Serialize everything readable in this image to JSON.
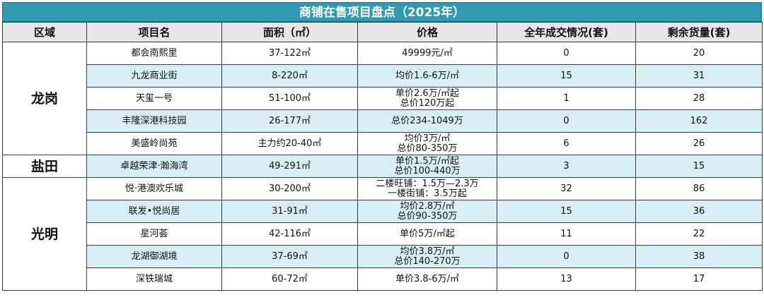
{
  "title": "商铺在售项目盘点（2025年）",
  "headers": [
    "区域",
    "项目名",
    "面积（㎡）",
    "价格",
    "全年成交情况(套)",
    "剩余货量(套)"
  ],
  "groups": [
    {
      "region": "龙岗",
      "rows": [
        {
          "name": "都会南熙里",
          "area": "37-122㎡",
          "price": [
            "49999元/㎡"
          ],
          "sold": "0",
          "left": "20"
        },
        {
          "name": "九龙商业街",
          "area": "8-220㎡",
          "price": [
            "均价1.6-6万/㎡"
          ],
          "sold": "15",
          "left": "31"
        },
        {
          "name": "天玺一号",
          "area": "51-100㎡",
          "price": [
            "单价2.6万/㎡起",
            "总价120万起"
          ],
          "sold": "1",
          "left": "28"
        },
        {
          "name": "丰隆深港科技园",
          "area": "26-177㎡",
          "price": [
            "总价234-1049万"
          ],
          "sold": "0",
          "left": "162"
        },
        {
          "name": "美盛岭尚苑",
          "area": "主力约20-40㎡",
          "price": [
            "均价3万/㎡",
            "总价80-350万"
          ],
          "sold": "6",
          "left": "26"
        }
      ]
    },
    {
      "region": "盐田",
      "rows": [
        {
          "name": "卓越荣津·瀚海湾",
          "area": "49-291㎡",
          "price": [
            "单价1.5万/㎡起",
            "总价100-440万"
          ],
          "sold": "3",
          "left": "15"
        }
      ]
    },
    {
      "region": "光明",
      "rows": [
        {
          "name": "悦·港澳欢乐城",
          "area": "30-200㎡",
          "price": [
            "二楼旺铺：1.5万—2.3万",
            "一楼街铺：3.5万起"
          ],
          "sold": "32",
          "left": "86"
        },
        {
          "name": "联发•悦尚居",
          "area": "31-91㎡",
          "price": [
            "均价2.8万/㎡",
            "总价90-350万"
          ],
          "sold": "15",
          "left": "36"
        },
        {
          "name": "星河荟",
          "area": "42-116㎡",
          "price": [
            "单价5万/㎡起"
          ],
          "sold": "11",
          "left": "22"
        },
        {
          "name": "龙湖御湖境",
          "area": "37-69㎡",
          "price": [
            "均价3.8万/㎡",
            "总价140-270万"
          ],
          "sold": "0",
          "left": "38"
        },
        {
          "name": "深铁瑞城",
          "area": "60-72㎡",
          "price": [
            "单价3.8-6万/㎡"
          ],
          "sold": "13",
          "left": "17"
        }
      ]
    }
  ]
}
